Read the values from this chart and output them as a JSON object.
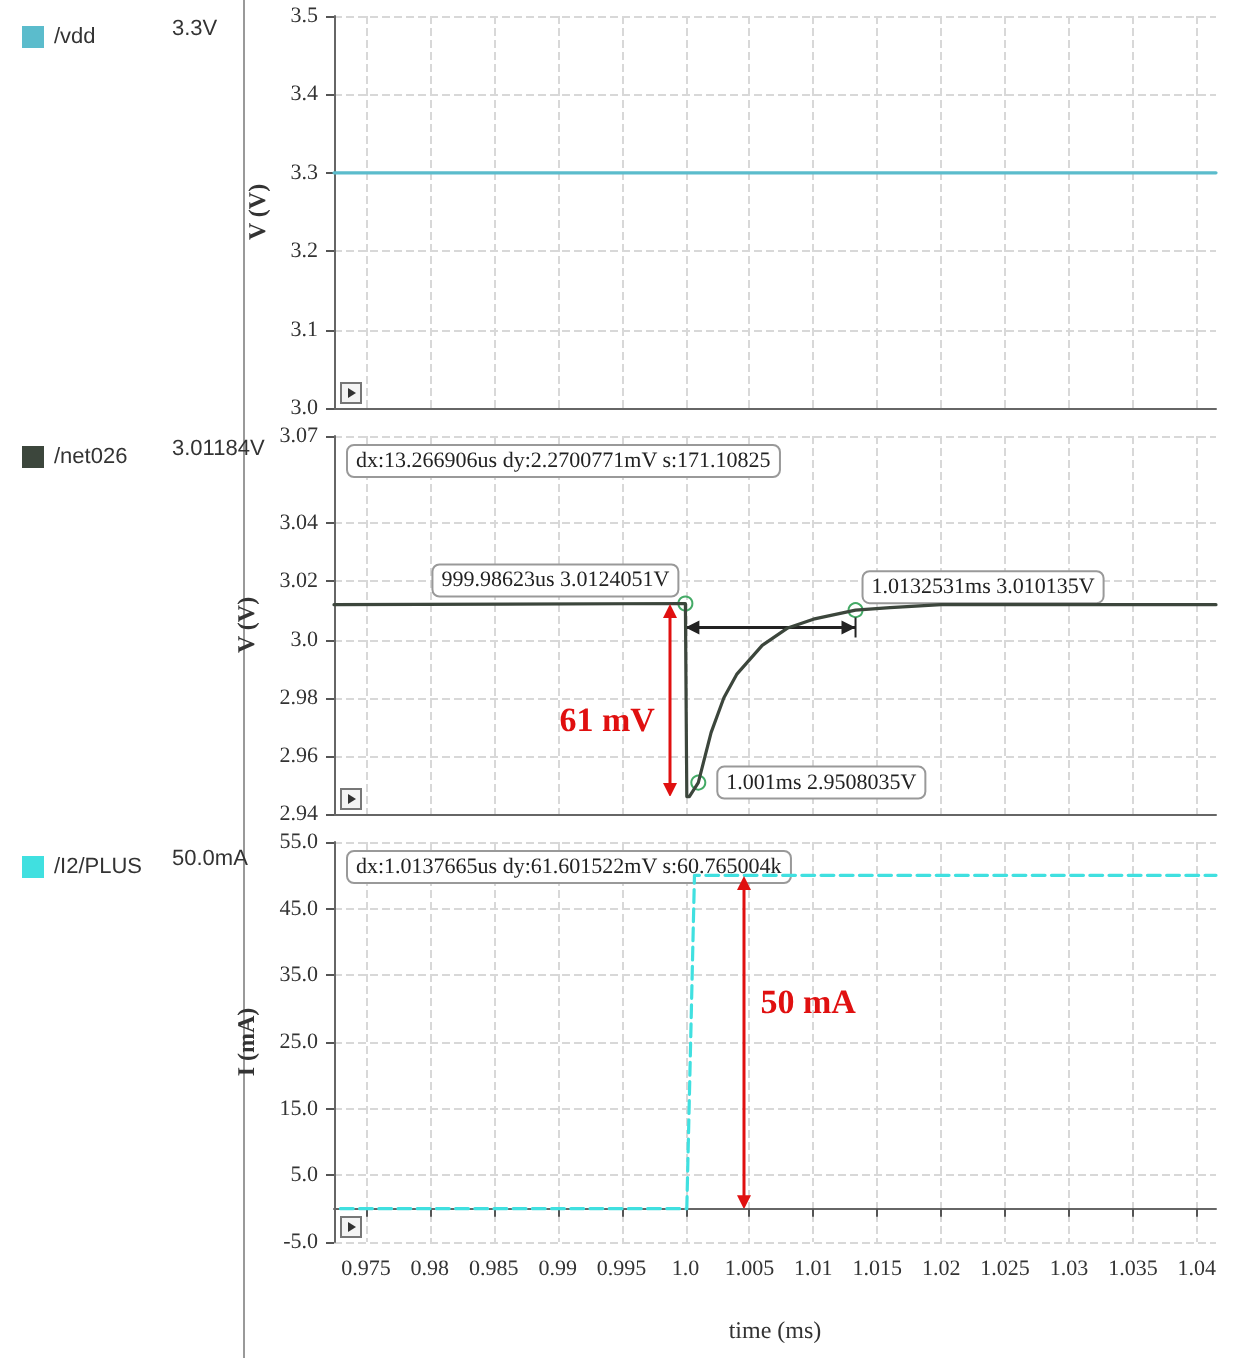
{
  "chart_data": [
    {
      "type": "line",
      "ylabel": "V (V)",
      "xlim": [
        0.9725,
        1.0415
      ],
      "ylim": [
        3.0,
        3.5
      ],
      "xticks": [
        0.975,
        0.98,
        0.985,
        0.99,
        0.995,
        1.0,
        1.005,
        1.01,
        1.015,
        1.02,
        1.025,
        1.03,
        1.035,
        1.04
      ],
      "yticks": [
        {
          "value": 3.0,
          "label": "3.0"
        },
        3.1,
        3.2,
        3.3,
        3.4,
        3.5
      ],
      "tick_labels": "y",
      "grid": true,
      "legend": "left",
      "line_style": "solid",
      "series": [
        {
          "name": "/vdd",
          "color": "#5bbccc",
          "x": [
            0.9725,
            1.0415
          ],
          "values": [
            3.3,
            3.3
          ]
        }
      ],
      "annotations": [
        "3.3V"
      ]
    },
    {
      "type": "line",
      "ylabel": "V (V)",
      "xlim": [
        0.9725,
        1.0415
      ],
      "ylim": [
        2.94,
        3.07
      ],
      "xticks": [
        0.975,
        0.98,
        0.985,
        0.99,
        0.995,
        1.0,
        1.005,
        1.01,
        1.015,
        1.02,
        1.025,
        1.03,
        1.035,
        1.04
      ],
      "yticks": [
        2.94,
        2.96,
        2.98,
        {
          "value": 3.0,
          "label": "3.0"
        },
        3.02,
        3.04,
        3.07
      ],
      "tick_labels": "y",
      "grid": true,
      "legend": "left",
      "line_style": "solid",
      "series": [
        {
          "name": "/net026",
          "color": "#3c463c",
          "x": [
            0.9725,
            0.99999,
            1.0001,
            1.0003,
            1.001,
            1.002,
            1.003,
            1.004,
            1.006,
            1.008,
            1.01,
            1.0133,
            1.016,
            1.02,
            1.0415
          ],
          "values": [
            3.012,
            3.0124,
            2.946,
            2.946,
            2.9508,
            2.968,
            2.98,
            2.988,
            2.998,
            3.004,
            3.007,
            3.0101,
            3.011,
            3.012,
            3.012
          ]
        }
      ],
      "annotations": [
        "3.01184V",
        "dx:13.266906us dy:2.2700771mV s:171.10825",
        {
          "text": "999.98623us 3.0124051V",
          "x": 0.99999,
          "y": 3.0124
        },
        {
          "text": "1.0132531ms 3.010135V",
          "x": 1.0133,
          "y": 3.0101
        },
        {
          "text": "1.001ms 2.9508035V",
          "x": 1.001,
          "y": 2.9508
        },
        "61 mV"
      ]
    },
    {
      "type": "line",
      "ylabel": "I (mA)",
      "xlabel": "time (ms)",
      "xlim": [
        0.9725,
        1.0415
      ],
      "ylim": [
        -5,
        55
      ],
      "xticks": [
        0.975,
        0.98,
        0.985,
        0.99,
        0.995,
        {
          "value": 1.0,
          "label": "1.0"
        },
        1.005,
        1.01,
        1.015,
        1.02,
        1.025,
        1.03,
        1.035,
        1.04
      ],
      "yticks": [
        {
          "value": -5,
          "label": "-5.0"
        },
        {
          "value": 5,
          "label": "5.0"
        },
        {
          "value": 15,
          "label": "15.0"
        },
        {
          "value": 25,
          "label": "25.0"
        },
        {
          "value": 35,
          "label": "35.0"
        },
        {
          "value": 45,
          "label": "45.0"
        },
        {
          "value": 55,
          "label": "55.0"
        }
      ],
      "grid": true,
      "legend": "left",
      "line_style": "dashed",
      "series": [
        {
          "name": "/I2/PLUS",
          "color": "#40e0e0",
          "x": [
            0.973,
            1.0001,
            1.0007,
            1.0415
          ],
          "values": [
            0,
            0,
            50,
            50
          ]
        }
      ],
      "annotations": [
        "50.0mA",
        "dx:1.0137665us dy:61.601522mV s:60.765004k",
        "50 mA"
      ]
    }
  ]
}
